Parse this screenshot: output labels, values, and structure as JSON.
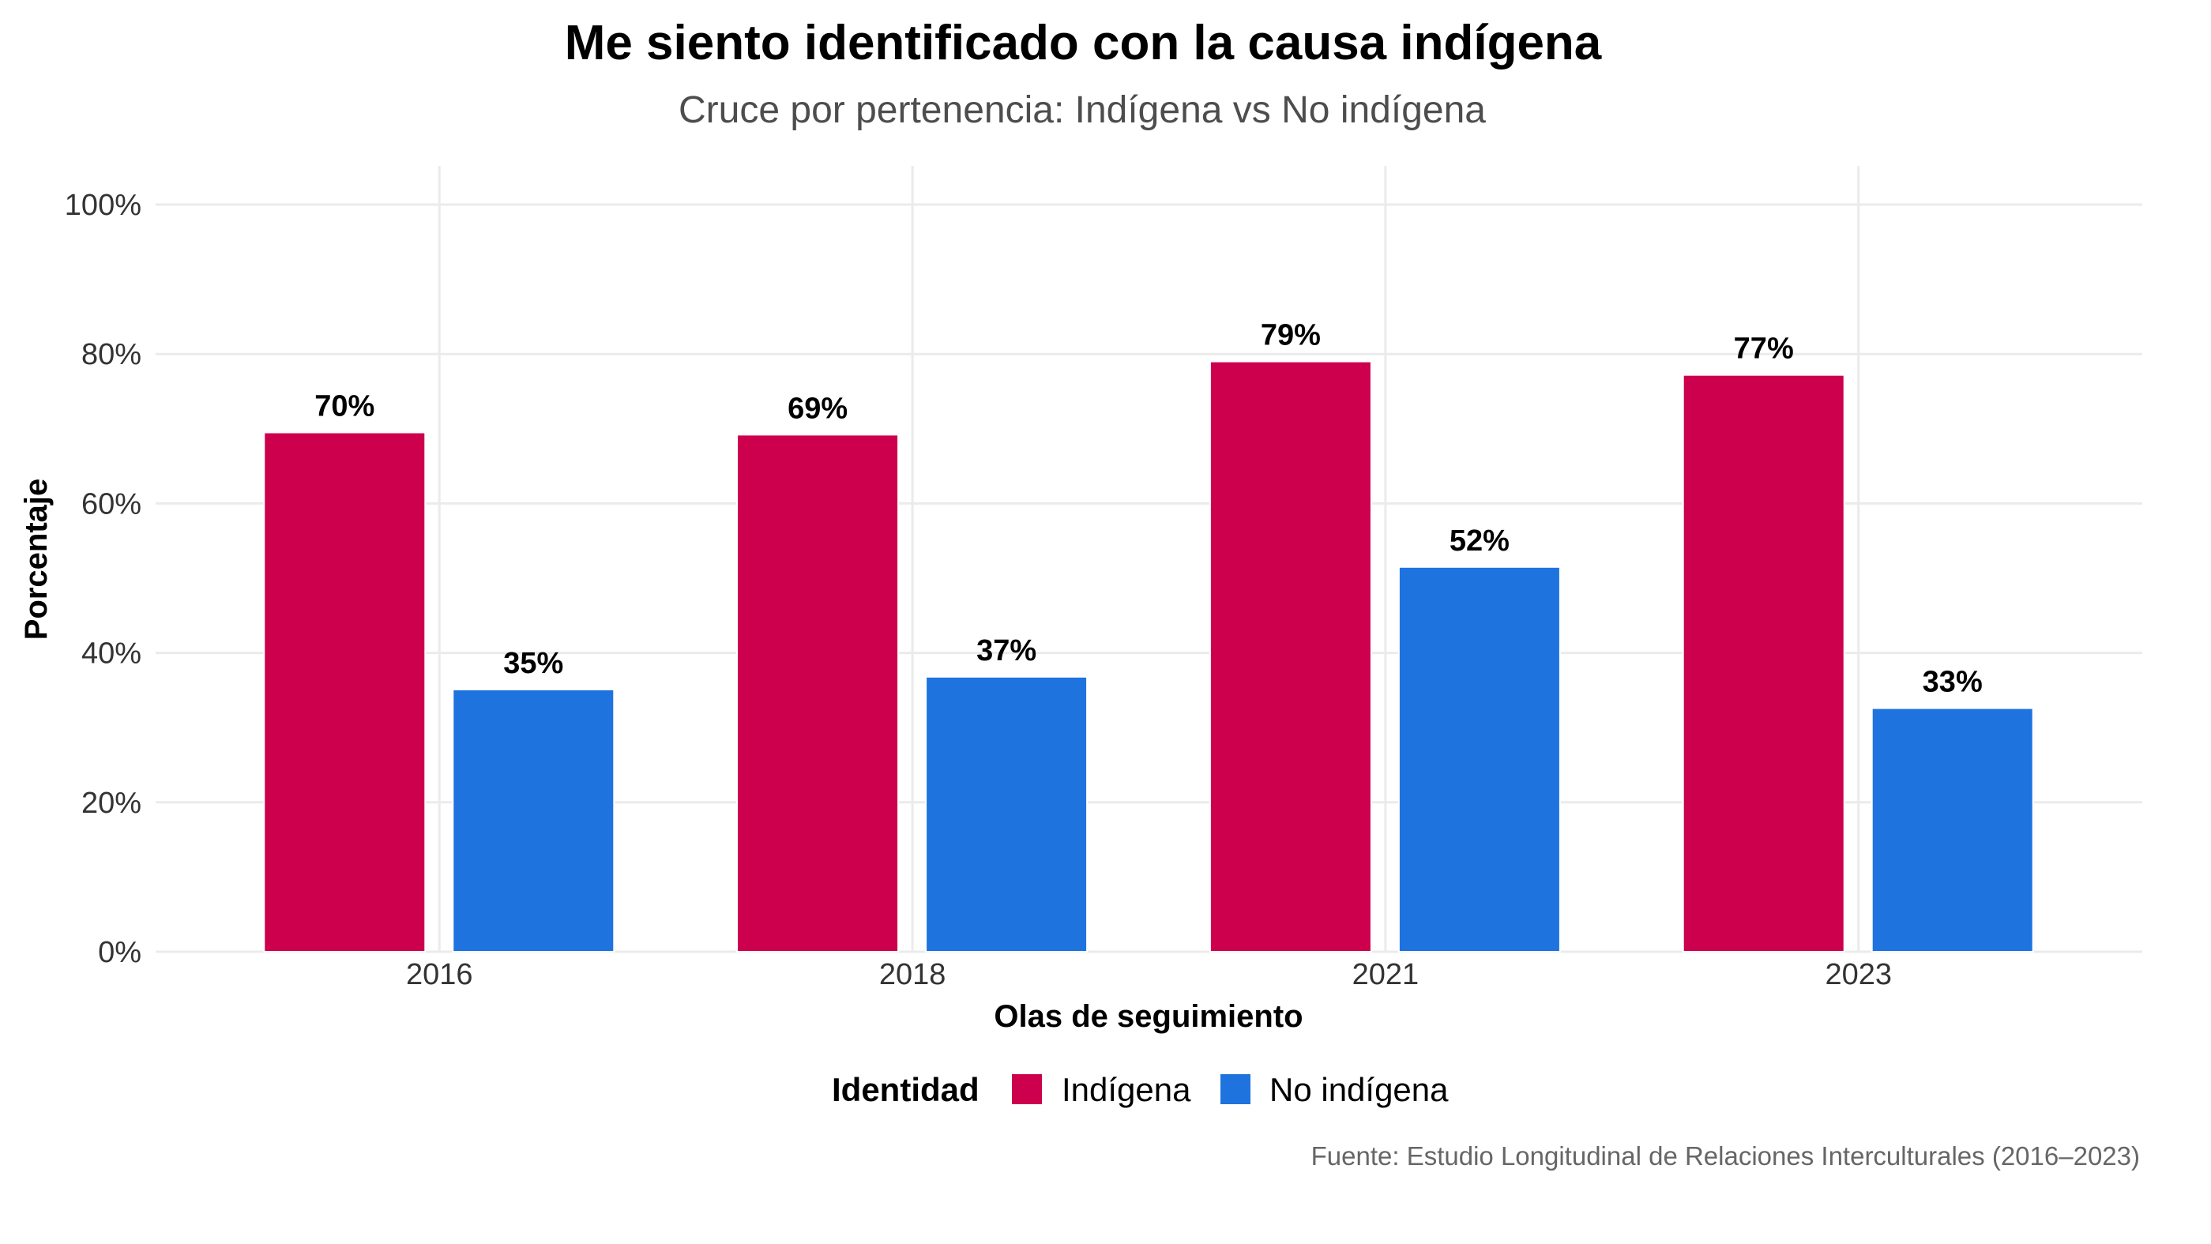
{
  "chart_data": {
    "type": "bar",
    "title": "Me siento identificado con la causa indígena",
    "subtitle": "Cruce por pertenencia: Indígena vs No indígena",
    "xlabel": "Olas de seguimiento",
    "ylabel": "Porcentaje",
    "caption": "Fuente: Estudio Longitudinal de Relaciones Interculturales (2016–2023)",
    "categories": [
      "2016",
      "2018",
      "2021",
      "2023"
    ],
    "ylim": [
      0,
      100
    ],
    "yticks": [
      0,
      20,
      40,
      60,
      80,
      100
    ],
    "ytick_labels": [
      "0%",
      "20%",
      "40%",
      "60%",
      "80%",
      "100%"
    ],
    "grid": true,
    "legend": {
      "title": "Identidad",
      "position": "bottom"
    },
    "series": [
      {
        "name": "Indígena",
        "color": "#cc004c",
        "values": [
          69.5,
          69.2,
          79.0,
          77.2
        ],
        "labels": [
          "70%",
          "69%",
          "79%",
          "77%"
        ]
      },
      {
        "name": "No indígena",
        "color": "#1e73de",
        "values": [
          35.1,
          36.8,
          51.5,
          32.6
        ],
        "labels": [
          "35%",
          "37%",
          "52%",
          "33%"
        ]
      }
    ]
  }
}
